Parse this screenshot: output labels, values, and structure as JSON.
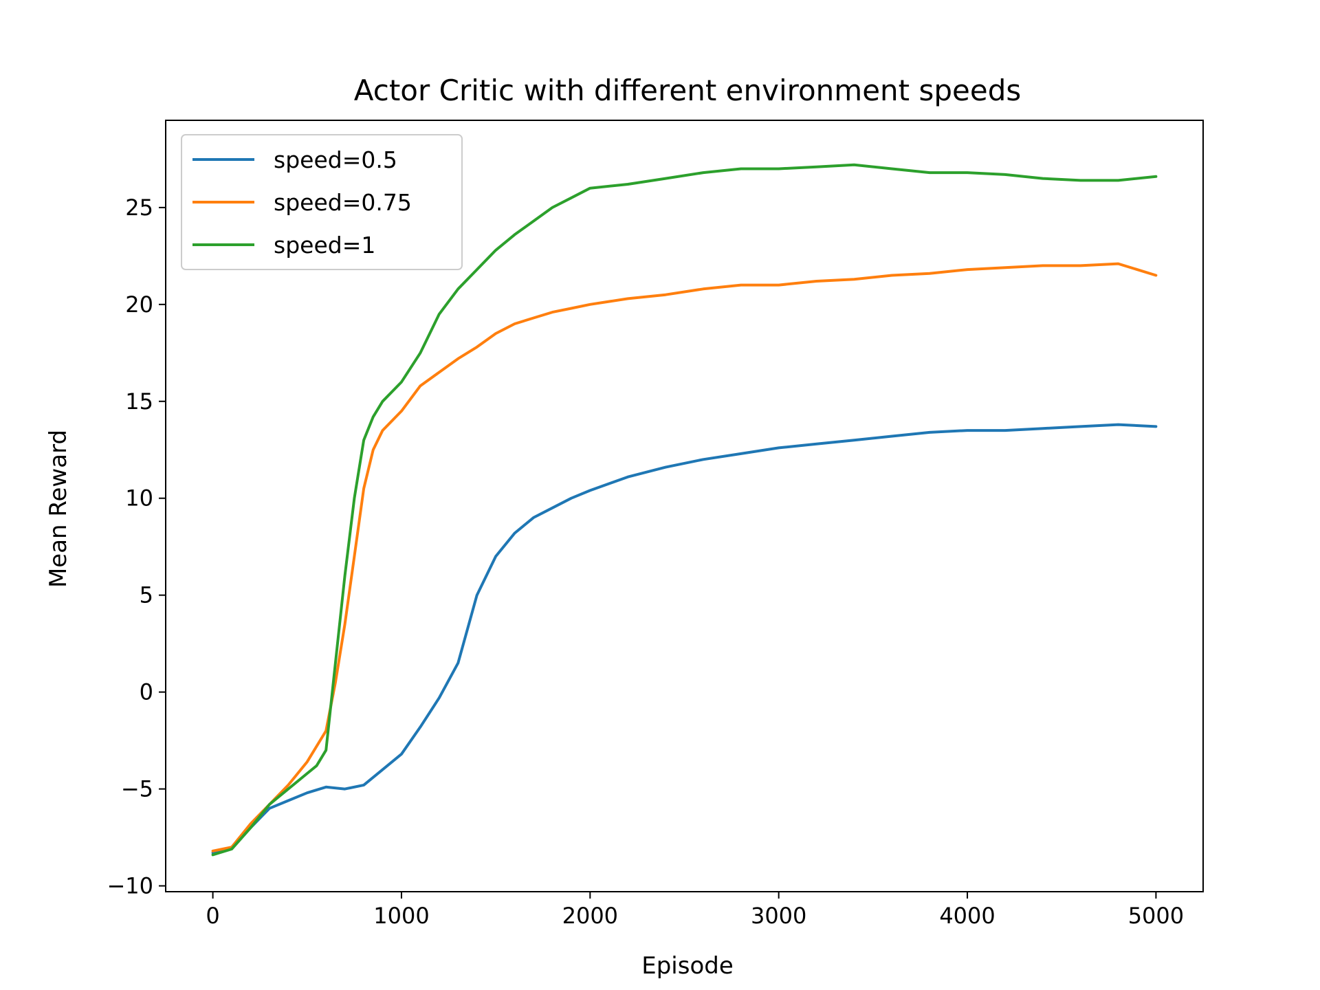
{
  "chart_data": {
    "type": "line",
    "title": "Actor Critic with different environment speeds",
    "xlabel": "Episode",
    "ylabel": "Mean Reward",
    "xlim": [
      -250,
      5250
    ],
    "ylim": [
      -10.3,
      29.5
    ],
    "xticks": [
      0,
      1000,
      2000,
      3000,
      4000,
      5000
    ],
    "xtick_labels": [
      "0",
      "1000",
      "2000",
      "3000",
      "4000",
      "5000"
    ],
    "yticks": [
      -10,
      -5,
      0,
      5,
      10,
      15,
      20,
      25
    ],
    "ytick_labels": [
      "−10",
      "−5",
      "0",
      "5",
      "10",
      "15",
      "20",
      "25"
    ],
    "grid": false,
    "legend_position": "top-left",
    "series": [
      {
        "name": "speed=0.5",
        "color": "#1f77b4",
        "x": [
          0,
          100,
          200,
          300,
          400,
          500,
          600,
          700,
          800,
          900,
          1000,
          1100,
          1200,
          1300,
          1400,
          1500,
          1600,
          1700,
          1800,
          1900,
          2000,
          2200,
          2400,
          2600,
          2800,
          3000,
          3200,
          3400,
          3600,
          3800,
          4000,
          4200,
          4400,
          4600,
          4800,
          5000
        ],
        "y": [
          -8.3,
          -8.0,
          -7.0,
          -6.0,
          -5.6,
          -5.2,
          -4.9,
          -5.0,
          -4.8,
          -4.0,
          -3.2,
          -1.8,
          -0.3,
          1.5,
          5.0,
          7.0,
          8.2,
          9.0,
          9.5,
          10.0,
          10.4,
          11.1,
          11.6,
          12.0,
          12.3,
          12.6,
          12.8,
          13.0,
          13.2,
          13.4,
          13.5,
          13.5,
          13.6,
          13.7,
          13.8,
          13.7
        ]
      },
      {
        "name": "speed=0.75",
        "color": "#ff7f0e",
        "x": [
          0,
          100,
          200,
          300,
          400,
          500,
          600,
          650,
          700,
          750,
          800,
          850,
          900,
          1000,
          1100,
          1200,
          1300,
          1400,
          1500,
          1600,
          1700,
          1800,
          1900,
          2000,
          2200,
          2400,
          2600,
          2800,
          3000,
          3200,
          3400,
          3600,
          3800,
          4000,
          4200,
          4400,
          4600,
          4800,
          5000
        ],
        "y": [
          -8.2,
          -8.0,
          -6.8,
          -5.8,
          -4.8,
          -3.6,
          -2.0,
          0.5,
          3.5,
          7.0,
          10.5,
          12.5,
          13.5,
          14.5,
          15.8,
          16.5,
          17.2,
          17.8,
          18.5,
          19.0,
          19.3,
          19.6,
          19.8,
          20.0,
          20.3,
          20.5,
          20.8,
          21.0,
          21.0,
          21.2,
          21.3,
          21.5,
          21.6,
          21.8,
          21.9,
          22.0,
          22.0,
          22.1,
          21.5
        ]
      },
      {
        "name": "speed=1",
        "color": "#2ca02c",
        "x": [
          0,
          100,
          200,
          300,
          400,
          500,
          550,
          600,
          650,
          700,
          750,
          800,
          850,
          900,
          1000,
          1100,
          1200,
          1300,
          1400,
          1500,
          1600,
          1700,
          1800,
          1900,
          2000,
          2200,
          2400,
          2600,
          2800,
          3000,
          3200,
          3400,
          3600,
          3800,
          4000,
          4200,
          4400,
          4600,
          4800,
          5000
        ],
        "y": [
          -8.4,
          -8.1,
          -7.0,
          -5.8,
          -5.0,
          -4.2,
          -3.8,
          -3.0,
          1.5,
          6.0,
          10.0,
          13.0,
          14.2,
          15.0,
          16.0,
          17.5,
          19.5,
          20.8,
          21.8,
          22.8,
          23.6,
          24.3,
          25.0,
          25.5,
          26.0,
          26.2,
          26.5,
          26.8,
          27.0,
          27.0,
          27.1,
          27.2,
          27.0,
          26.8,
          26.8,
          26.7,
          26.5,
          26.4,
          26.4,
          26.6
        ]
      }
    ]
  }
}
